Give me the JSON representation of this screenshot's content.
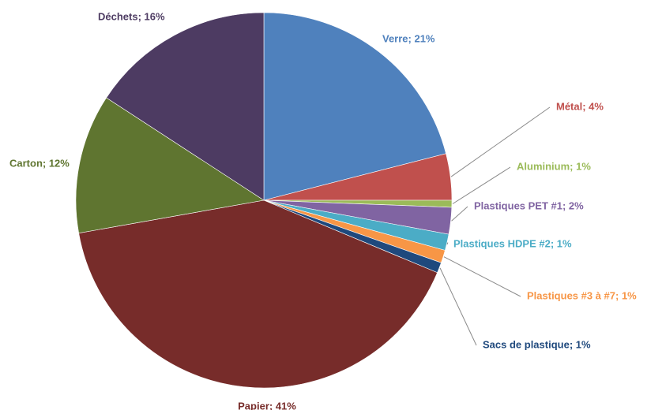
{
  "chart_data": {
    "type": "pie",
    "title": "",
    "start_angle_deg": 0,
    "direction": "clockwise",
    "slices": [
      {
        "name": "Verre",
        "label": "Verre; 21%",
        "value": 21,
        "color": "#4f81bd",
        "label_color": "#4f81bd"
      },
      {
        "name": "Métal",
        "label": "Métal; 4%",
        "value": 4,
        "color": "#c0504d",
        "label_color": "#c0504d"
      },
      {
        "name": "Aluminium",
        "label": "Aluminium; 1%",
        "value": 0.6,
        "color": "#9bbb59",
        "label_color": "#9bbb59"
      },
      {
        "name": "Plastiques PET #1",
        "label": "Plastiques PET #1; 2%",
        "value": 2.3,
        "color": "#8064a2",
        "label_color": "#8064a2"
      },
      {
        "name": "Plastiques HDPE #2",
        "label": "Plastiques HDPE #2; 1%",
        "value": 1.4,
        "color": "#4bacc6",
        "label_color": "#4bacc6"
      },
      {
        "name": "Plastiques #3 à #7",
        "label": "Plastiques #3 à #7; 1%",
        "value": 1.1,
        "color": "#f79646",
        "label_color": "#f79646"
      },
      {
        "name": "Sacs de plastique",
        "label": "Sacs de plastique; 1%",
        "value": 0.9,
        "color": "#1f497d",
        "label_color": "#1f497d"
      },
      {
        "name": "Papier",
        "label": "Papier; 41%",
        "value": 40.9,
        "color": "#772c2a",
        "label_color": "#772c2a"
      },
      {
        "name": "Carton",
        "label": "Carton; 12%",
        "value": 12,
        "color": "#5f7530",
        "label_color": "#5f7530"
      },
      {
        "name": "Déchets",
        "label": "Déchets; 16%",
        "value": 15.8,
        "color": "#4d3b62",
        "label_color": "#4d3b62"
      }
    ]
  }
}
